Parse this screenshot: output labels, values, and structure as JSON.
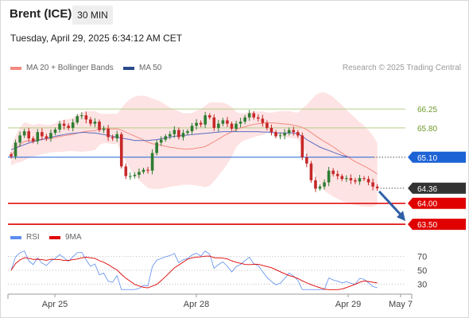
{
  "header": {
    "instrument": "Brent (ICE)",
    "timeframe": "30 MIN",
    "datetime": "Tuesday, April 29, 2025 6:34:12 AM CET"
  },
  "legend": {
    "bollinger": "MA 20 + Bollinger Bands",
    "ma50": "MA 50",
    "rsi": "RSI",
    "rsi_ma": "9MA"
  },
  "credit": "Research © 2025 Trading Central",
  "colors": {
    "candle_up": "#2e7d32",
    "candle_down": "#c62828",
    "bollinger_fill": "#fde3e3",
    "ma20": "#f28b82",
    "ma50": "#5c6bc0",
    "resistance": "#b5cf8a",
    "pivot": "#1e63d6",
    "support": "#e00000",
    "current": "#333333",
    "arrow": "#2f5fa6",
    "rsi_line": "#5b8def",
    "rsi_ma_line": "#e00000"
  },
  "chart_data": {
    "type": "candlestick",
    "ylim": [
      63.35,
      67.05
    ],
    "x_ticks": [
      "Apr 25",
      "Apr 28",
      "Apr 29",
      "May 7"
    ],
    "levels": [
      {
        "value": 66.25,
        "label": "66.25",
        "kind": "resistance"
      },
      {
        "value": 65.8,
        "label": "65.80",
        "kind": "resistance"
      },
      {
        "value": 65.1,
        "label": "65.10",
        "kind": "pivot"
      },
      {
        "value": 64.36,
        "label": "64.36",
        "kind": "current"
      },
      {
        "value": 64.0,
        "label": "64.00",
        "kind": "support"
      },
      {
        "value": 63.5,
        "label": "63.50",
        "kind": "support"
      }
    ],
    "forecast_arrow": {
      "from": 64.36,
      "to": 63.5,
      "direction": "down"
    },
    "closes": [
      65.12,
      65.45,
      65.62,
      65.72,
      65.55,
      65.48,
      65.7,
      65.6,
      65.55,
      65.68,
      65.76,
      65.9,
      65.85,
      65.8,
      65.93,
      66.08,
      66.1,
      66.0,
      65.9,
      65.95,
      65.75,
      65.78,
      65.58,
      65.55,
      65.65,
      64.88,
      64.65,
      64.65,
      64.68,
      64.75,
      64.8,
      64.78,
      65.2,
      65.45,
      65.52,
      65.6,
      65.65,
      65.75,
      65.58,
      65.68,
      65.72,
      65.85,
      65.92,
      65.88,
      66.1,
      66.05,
      65.8,
      65.9,
      65.98,
      65.9,
      65.78,
      65.9,
      65.95,
      66.05,
      66.15,
      66.05,
      66.02,
      65.92,
      65.8,
      65.7,
      65.6,
      65.62,
      65.68,
      65.75,
      65.7,
      65.62,
      65.1,
      64.95,
      64.55,
      64.35,
      64.4,
      64.5,
      64.78,
      64.7,
      64.65,
      64.58,
      64.6,
      64.55,
      64.52,
      64.6,
      64.58,
      64.5,
      64.4,
      64.36
    ],
    "ma50": [
      65.28,
      65.32,
      65.36,
      65.4,
      65.44,
      65.47,
      65.5,
      65.52,
      65.55,
      65.58,
      65.6,
      65.62,
      65.64,
      65.66,
      65.67,
      65.68,
      65.69,
      65.69,
      65.68,
      65.68,
      65.66,
      65.64,
      65.62,
      65.6,
      65.58,
      65.56,
      65.54,
      65.52,
      65.5,
      65.5,
      65.5,
      65.5,
      65.51,
      65.52,
      65.54,
      65.56,
      65.58,
      65.6,
      65.61,
      65.62,
      65.63,
      65.64,
      65.65,
      65.66,
      65.67,
      65.68,
      65.69,
      65.7,
      65.71,
      65.71,
      65.71,
      65.71,
      65.71,
      65.71,
      65.71,
      65.71,
      65.71,
      65.7,
      65.7,
      65.69,
      65.68,
      65.68,
      65.68,
      65.68,
      65.68,
      65.66,
      65.6,
      65.52,
      65.46,
      65.4,
      65.34,
      65.3,
      65.26,
      65.22,
      65.18,
      65.14,
      65.12,
      65.1
    ],
    "rsi": {
      "ticks": [
        70,
        50,
        30
      ],
      "ylim": [
        20,
        80
      ]
    }
  }
}
